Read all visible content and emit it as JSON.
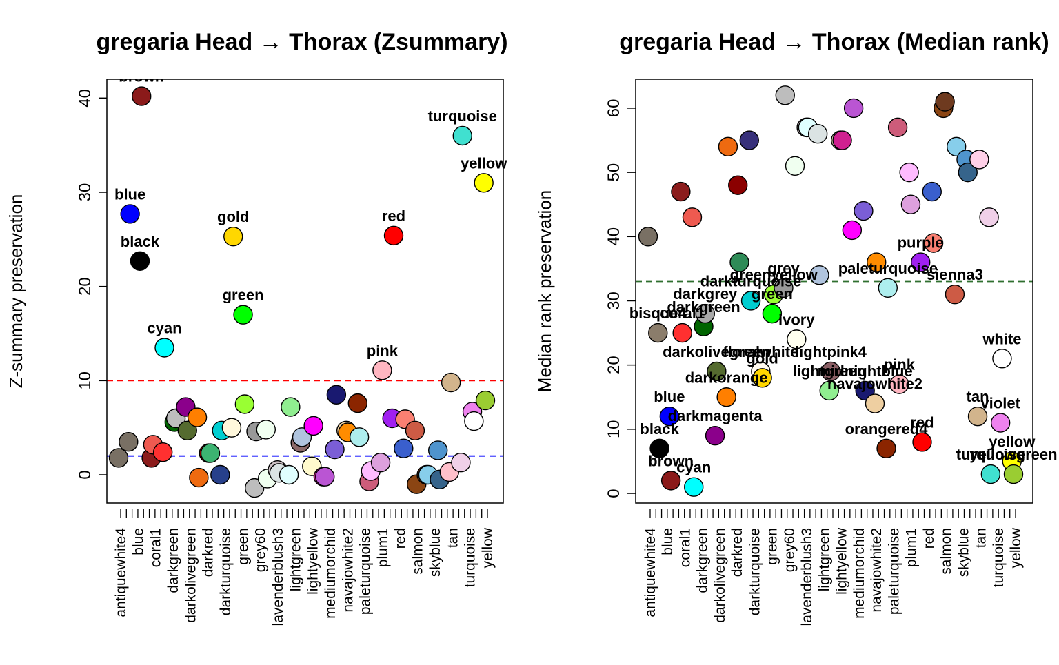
{
  "chart_data": [
    {
      "type": "scatter",
      "title": "gregaria Head → Thorax (Zsummary)",
      "ylabel": "Z-summary preservation",
      "ylim": [
        -3,
        42
      ],
      "yticks": [
        0,
        10,
        20,
        30,
        40
      ],
      "thresholds": [
        {
          "value": 10,
          "color": "#ff0000"
        },
        {
          "value": 2,
          "color": "#0000ff"
        }
      ],
      "axis_labels": [
        "antiquewhite4",
        "blue",
        "coral1",
        "darkgreen",
        "darkolivegreen",
        "darkred",
        "darkturquoise",
        "green",
        "grey60",
        "lavenderblush3",
        "lightgreen",
        "lightyellow",
        "mediumorchid",
        "navajowhite2",
        "paleturquoise",
        "plum1",
        "red",
        "salmon",
        "skyblue",
        "tan",
        "turquoise",
        "yellow"
      ],
      "points": [
        {
          "color": "#797064",
          "y": 1.8,
          "label": ""
        },
        {
          "color": "#797064",
          "y": 3.5,
          "label": ""
        },
        {
          "color": "#0000ff",
          "y": 27.7,
          "label": "blue"
        },
        {
          "color": "#000000",
          "y": 22.7,
          "label": "black"
        },
        {
          "color": "#8b1a1a",
          "y": 40.2,
          "label": "brown"
        },
        {
          "color": "#8b1c1c",
          "y": 1.8,
          "label": ""
        },
        {
          "color": "#ee5a50",
          "y": 3.2,
          "label": ""
        },
        {
          "color": "#ff3030",
          "y": 2.4,
          "label": ""
        },
        {
          "color": "#00ffff",
          "y": 13.5,
          "label": "cyan"
        },
        {
          "color": "#006400",
          "y": 5.6,
          "label": ""
        },
        {
          "color": "#bebebe",
          "y": 6.0,
          "label": ""
        },
        {
          "color": "#8b008b",
          "y": 7.2,
          "label": ""
        },
        {
          "color": "#556b2f",
          "y": 4.7,
          "label": ""
        },
        {
          "color": "#ff7f00",
          "y": 6.1,
          "label": ""
        },
        {
          "color": "#ee6a10",
          "y": -0.3,
          "label": ""
        },
        {
          "color": "#8b0000",
          "y": 2.3,
          "label": ""
        },
        {
          "color": "#3cb371",
          "y": 2.3,
          "label": ""
        },
        {
          "color": "#27408b",
          "y": 0.0,
          "label": ""
        },
        {
          "color": "#00ced1",
          "y": 4.7,
          "label": ""
        },
        {
          "color": "#fff8dc",
          "y": 5.0,
          "label": ""
        },
        {
          "color": "#ffd700",
          "y": 25.3,
          "label": "gold"
        },
        {
          "color": "#00ff00",
          "y": 17.0,
          "label": "green"
        },
        {
          "color": "#99ff33",
          "y": 7.5,
          "label": ""
        },
        {
          "color": "#bdbdbd",
          "y": -1.4,
          "label": ""
        },
        {
          "color": "#999999",
          "y": 4.6,
          "label": ""
        },
        {
          "color": "#f0fff0",
          "y": 4.8,
          "label": ""
        },
        {
          "color": "#f0fff0",
          "y": -0.4,
          "label": ""
        },
        {
          "color": "#cdc1c5",
          "y": 0.5,
          "label": ""
        },
        {
          "color": "#dbe3e3",
          "y": 0.2,
          "label": ""
        },
        {
          "color": "#e0ffff",
          "y": 0.0,
          "label": ""
        },
        {
          "color": "#90ee90",
          "y": 7.2,
          "label": ""
        },
        {
          "color": "#8b6969",
          "y": 3.4,
          "label": ""
        },
        {
          "color": "#b0c4de",
          "y": 4.0,
          "label": ""
        },
        {
          "color": "#fffacd",
          "y": 0.9,
          "label": ""
        },
        {
          "color": "#ff00ff",
          "y": 5.2,
          "label": ""
        },
        {
          "color": "#d02090",
          "y": -0.2,
          "label": ""
        },
        {
          "color": "#ba55d3",
          "y": -0.2,
          "label": ""
        },
        {
          "color": "#7b5ed6",
          "y": 2.7,
          "label": ""
        },
        {
          "color": "#191970",
          "y": 8.5,
          "label": ""
        },
        {
          "color": "#eecfa1",
          "y": 4.7,
          "label": ""
        },
        {
          "color": "#ff8c00",
          "y": 4.5,
          "label": ""
        },
        {
          "color": "#8b2500",
          "y": 7.6,
          "label": ""
        },
        {
          "color": "#aeeeee",
          "y": 4.0,
          "label": ""
        },
        {
          "color": "#cd5c7a",
          "y": -0.7,
          "label": ""
        },
        {
          "color": "#ffbbff",
          "y": 0.4,
          "label": ""
        },
        {
          "color": "#dda0dd",
          "y": 1.3,
          "label": ""
        },
        {
          "color": "#ffb6c1",
          "y": 11.1,
          "label": "pink"
        },
        {
          "color": "#a020f0",
          "y": 6.0,
          "label": ""
        },
        {
          "color": "#ff0000",
          "y": 25.4,
          "label": "red"
        },
        {
          "color": "#3a5fcd",
          "y": 2.8,
          "label": ""
        },
        {
          "color": "#fa8072",
          "y": 5.9,
          "label": ""
        },
        {
          "color": "#cd5b45",
          "y": 4.7,
          "label": ""
        },
        {
          "color": "#8b4513",
          "y": -1.0,
          "label": ""
        },
        {
          "color": "#6e3a1f",
          "y": 0.0,
          "label": ""
        },
        {
          "color": "#87ceeb",
          "y": 0.0,
          "label": ""
        },
        {
          "color": "#4f94cd",
          "y": 2.6,
          "label": ""
        },
        {
          "color": "#36648b",
          "y": -0.5,
          "label": ""
        },
        {
          "color": "#ffc0cb",
          "y": 0.3,
          "label": ""
        },
        {
          "color": "#d2b48c",
          "y": 9.8,
          "label": ""
        },
        {
          "color": "#f0d0e8",
          "y": 1.3,
          "label": ""
        },
        {
          "color": "#40e0d0",
          "y": 36.0,
          "label": "turquoise"
        },
        {
          "color": "#ee82ee",
          "y": 6.7,
          "label": ""
        },
        {
          "color": "#ffffff",
          "y": 5.7,
          "label": ""
        },
        {
          "color": "#ffff00",
          "y": 31.0,
          "label": "yellow"
        },
        {
          "color": "#9acd32",
          "y": 7.9,
          "label": ""
        }
      ]
    },
    {
      "type": "scatter",
      "title": "gregaria Head → Thorax (Median rank)",
      "ylabel": "Median rank preservation",
      "ylim": [
        -1.5,
        64.5
      ],
      "yticks": [
        0,
        10,
        20,
        30,
        40,
        50,
        60
      ],
      "thresholds": [
        {
          "value": 33,
          "color": "#2f6f2f"
        }
      ],
      "axis_labels": [
        "antiquewhite4",
        "blue",
        "coral1",
        "darkgreen",
        "darkolivegreen",
        "darkred",
        "darkturquoise",
        "green",
        "grey60",
        "lavenderblush3",
        "lightgreen",
        "lightyellow",
        "mediumorchid",
        "navajowhite2",
        "paleturquoise",
        "plum1",
        "red",
        "salmon",
        "skyblue",
        "tan",
        "turquoise",
        "yellow"
      ],
      "points": [
        {
          "color": "#797064",
          "y": 40,
          "label": ""
        },
        {
          "color": "#8b7d6b",
          "y": 25,
          "label": "bisque4"
        },
        {
          "color": "#000000",
          "y": 7,
          "label": "black"
        },
        {
          "color": "#0000ff",
          "y": 12,
          "label": "blue"
        },
        {
          "color": "#8b1a1a",
          "y": 2,
          "label": "brown"
        },
        {
          "color": "#8b1c1c",
          "y": 47,
          "label": ""
        },
        {
          "color": "#ff3030",
          "y": 25,
          "label": "coral1"
        },
        {
          "color": "#ee5a50",
          "y": 43,
          "label": ""
        },
        {
          "color": "#00ffff",
          "y": 1,
          "label": "cyan"
        },
        {
          "color": "#006400",
          "y": 26,
          "label": "darkgreen"
        },
        {
          "color": "#a9a9a9",
          "y": 28,
          "label": "darkgrey"
        },
        {
          "color": "#8b008b",
          "y": 9,
          "label": "darkmagenta"
        },
        {
          "color": "#556b2f",
          "y": 19,
          "label": "darkolivegreen"
        },
        {
          "color": "#ff7f00",
          "y": 15,
          "label": "darkorange"
        },
        {
          "color": "#ee6a10",
          "y": 54,
          "label": ""
        },
        {
          "color": "#8b0000",
          "y": 48,
          "label": ""
        },
        {
          "color": "#2e8b57",
          "y": 36,
          "label": ""
        },
        {
          "color": "#37307a",
          "y": 55,
          "label": ""
        },
        {
          "color": "#00ced1",
          "y": 30,
          "label": "darkturquoise"
        },
        {
          "color": "#fffaf0",
          "y": 19,
          "label": "floralwhite"
        },
        {
          "color": "#ffd700",
          "y": 18,
          "label": "gold"
        },
        {
          "color": "#00ff00",
          "y": 28,
          "label": "green"
        },
        {
          "color": "#99ff33",
          "y": 31,
          "label": "greenyellow"
        },
        {
          "color": "#999999",
          "y": 32,
          "label": "grey"
        },
        {
          "color": "#bdbdbd",
          "y": 62,
          "label": ""
        },
        {
          "color": "#f0fff0",
          "y": 51,
          "label": ""
        },
        {
          "color": "#fffff0",
          "y": 24,
          "label": "ivory"
        },
        {
          "color": "#cdc1c5",
          "y": 57,
          "label": ""
        },
        {
          "color": "#e0ffff",
          "y": 57,
          "label": ""
        },
        {
          "color": "#dbe3e3",
          "y": 56,
          "label": ""
        },
        {
          "color": "#b0c4de",
          "y": 34,
          "label": ""
        },
        {
          "color": "#90ee90",
          "y": 16,
          "label": "lightgreen"
        },
        {
          "color": "#8b5f65",
          "y": 19,
          "label": "lightpink4"
        },
        {
          "color": "#fffacd",
          "y": 55,
          "label": ""
        },
        {
          "color": "#d02090",
          "y": 55,
          "label": ""
        },
        {
          "color": "#ff00ff",
          "y": 41,
          "label": ""
        },
        {
          "color": "#ba55d3",
          "y": 60,
          "label": ""
        },
        {
          "color": "#7b5ed6",
          "y": 44,
          "label": ""
        },
        {
          "color": "#191970",
          "y": 16,
          "label": "midnightblue"
        },
        {
          "color": "#eecfa1",
          "y": 14,
          "label": "navajowhite2"
        },
        {
          "color": "#ff8c00",
          "y": 36,
          "label": ""
        },
        {
          "color": "#8b2500",
          "y": 7,
          "label": "orangered4"
        },
        {
          "color": "#aeeeee",
          "y": 32,
          "label": "paleturquoise"
        },
        {
          "color": "#cd5c7a",
          "y": 57,
          "label": ""
        },
        {
          "color": "#ffb6c1",
          "y": 17,
          "label": "pink"
        },
        {
          "color": "#ffbbff",
          "y": 50,
          "label": ""
        },
        {
          "color": "#dda0dd",
          "y": 45,
          "label": ""
        },
        {
          "color": "#a020f0",
          "y": 36,
          "label": "purple"
        },
        {
          "color": "#ff0000",
          "y": 8,
          "label": "red"
        },
        {
          "color": "#3a5fcd",
          "y": 47,
          "label": ""
        },
        {
          "color": "#fa8072",
          "y": 39,
          "label": ""
        },
        {
          "color": "#8b4513",
          "y": 60,
          "label": ""
        },
        {
          "color": "#6e3a1f",
          "y": 61,
          "label": ""
        },
        {
          "color": "#cd5b45",
          "y": 31,
          "label": "sienna3"
        },
        {
          "color": "#87ceeb",
          "y": 54,
          "label": ""
        },
        {
          "color": "#4f94cd",
          "y": 52,
          "label": ""
        },
        {
          "color": "#36648b",
          "y": 50,
          "label": ""
        },
        {
          "color": "#d2b48c",
          "y": 12,
          "label": "tan"
        },
        {
          "color": "#ffd0e8",
          "y": 52,
          "label": ""
        },
        {
          "color": "#f0d0e8",
          "y": 43,
          "label": ""
        },
        {
          "color": "#40e0d0",
          "y": 3,
          "label": "turquoise"
        },
        {
          "color": "#ee82ee",
          "y": 11,
          "label": "violet"
        },
        {
          "color": "#ffffff",
          "y": 21,
          "label": "white"
        },
        {
          "color": "#ffff00",
          "y": 5,
          "label": "yellow"
        },
        {
          "color": "#9acd32",
          "y": 3,
          "label": "yellowgreen"
        }
      ]
    }
  ]
}
